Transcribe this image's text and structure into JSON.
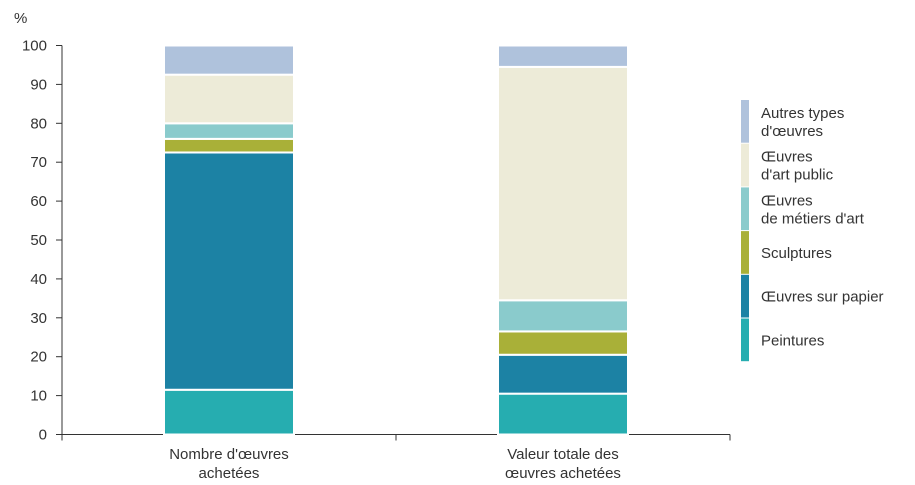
{
  "chart_data": {
    "type": "bar",
    "stacked": true,
    "ylabel": "%",
    "ylim": [
      0,
      100
    ],
    "yticks": [
      0,
      10,
      20,
      30,
      40,
      50,
      60,
      70,
      80,
      90,
      100
    ],
    "grid": false,
    "legend_position": "right",
    "categories": [
      [
        "Nombre d'œuvres",
        "achetées"
      ],
      [
        "Valeur totale des",
        "œuvres achetées"
      ]
    ],
    "series": [
      {
        "name": "Peintures",
        "legend_lines": [
          "Peintures"
        ],
        "color": "#26adb0",
        "values": [
          11.5,
          10.5
        ]
      },
      {
        "name": "Œuvres sur papier",
        "legend_lines": [
          "Œuvres sur papier"
        ],
        "color": "#1c82a4",
        "values": [
          61,
          10
        ]
      },
      {
        "name": "Sculptures",
        "legend_lines": [
          "Sculptures"
        ],
        "color": "#a9b038",
        "values": [
          3.5,
          6
        ]
      },
      {
        "name": "Œuvres de métiers d'art",
        "legend_lines": [
          "Œuvres",
          "de métiers d'art"
        ],
        "color": "#8acbcc",
        "values": [
          4,
          8
        ]
      },
      {
        "name": "Œuvres d'art public",
        "legend_lines": [
          "Œuvres",
          "d'art public"
        ],
        "color": "#edebd8",
        "values": [
          12.5,
          60
        ]
      },
      {
        "name": "Autres types d'œuvres",
        "legend_lines": [
          "Autres types",
          "d'œuvres"
        ],
        "color": "#afc2dc",
        "values": [
          7.5,
          5.5
        ]
      }
    ]
  }
}
